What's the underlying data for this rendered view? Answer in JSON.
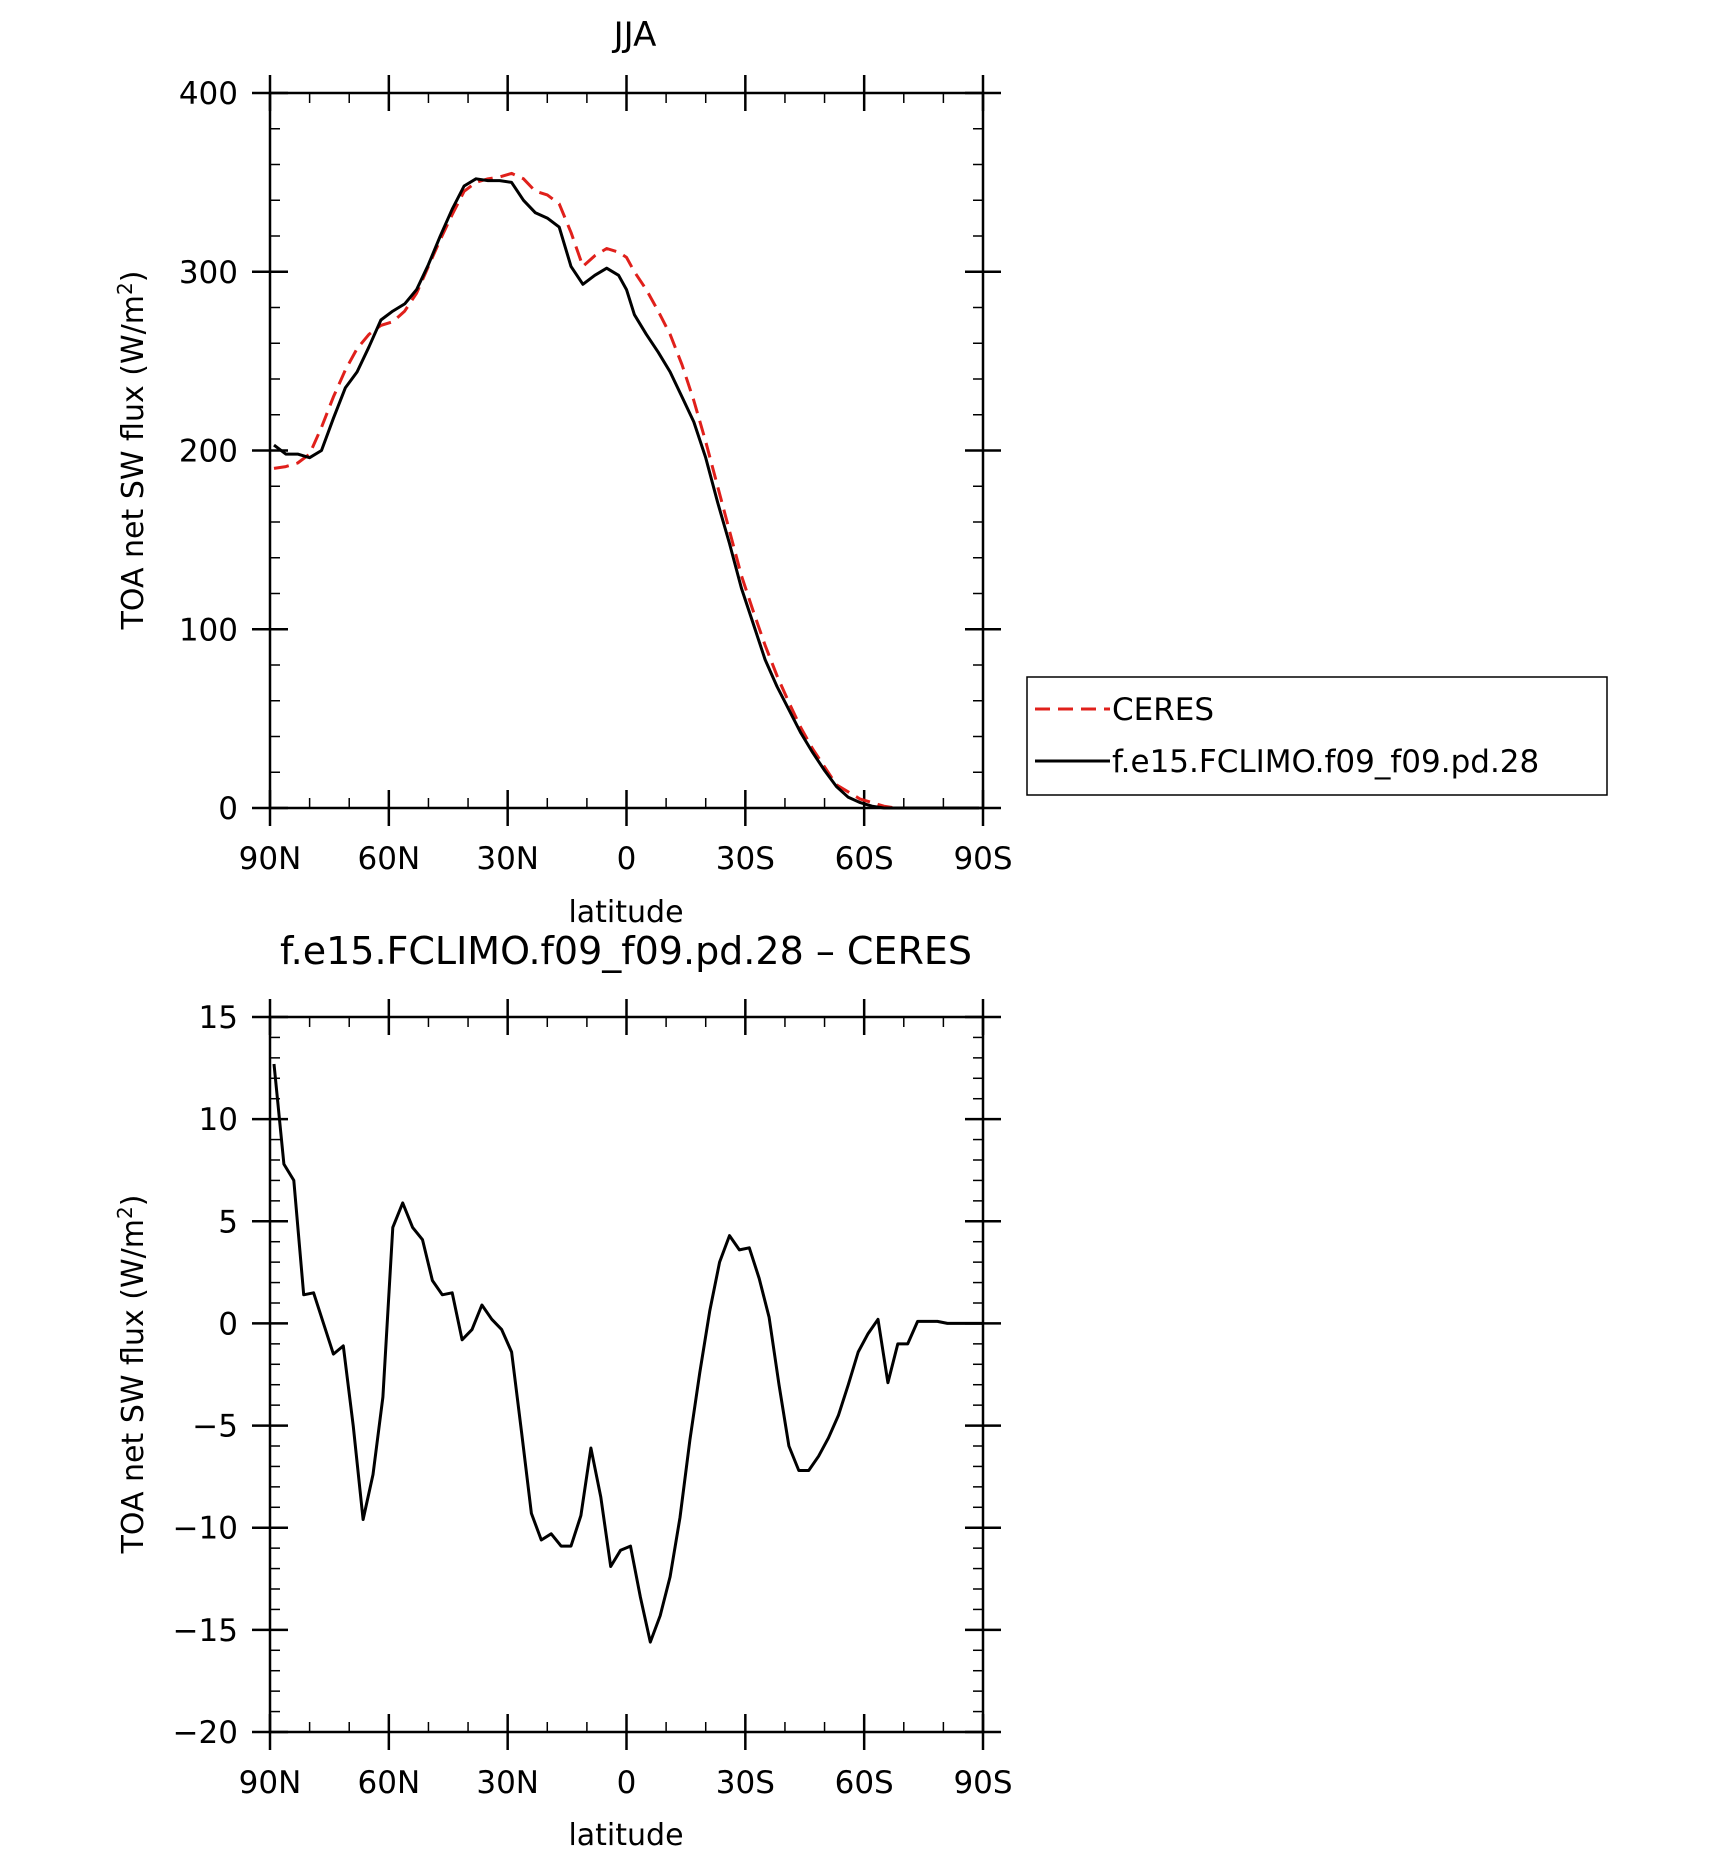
{
  "chart_data": [
    {
      "type": "line",
      "title": "JJA",
      "xlabel": "latitude",
      "ylabel": "TOA net SW flux (W/m",
      "ylabel_sup": "2",
      "ylabel_close": ")",
      "xlim": [
        90,
        -90
      ],
      "ylim": [
        0,
        400
      ],
      "xtick_values": [
        90,
        60,
        30,
        0,
        -30,
        -60,
        -90
      ],
      "xtick_labels": [
        "90N",
        "60N",
        "30N",
        "0",
        "30S",
        "60S",
        "90S"
      ],
      "ytick_values": [
        0,
        100,
        200,
        300,
        400
      ],
      "ytick_labels": [
        "0",
        "100",
        "200",
        "300",
        "400"
      ],
      "legend": {
        "placement": "right",
        "entries": [
          "CERES",
          "f.e15.FCLIMO.f09_f09.pd.28"
        ]
      },
      "series": [
        {
          "name": "CERES",
          "color": "#e0201b",
          "dash": true,
          "x": [
            89,
            86,
            83,
            80,
            77,
            74,
            71,
            68,
            65,
            62,
            59,
            56,
            53,
            50,
            47,
            44,
            41,
            38,
            35,
            32,
            29,
            26,
            23,
            20,
            17,
            14,
            11,
            8,
            5,
            2,
            0,
            -2,
            -5,
            -8,
            -11,
            -14,
            -17,
            -20,
            -23,
            -26,
            -29,
            -32,
            -35,
            -38,
            -41,
            -44,
            -47,
            -50,
            -53,
            -56,
            -59,
            -62,
            -65,
            -68,
            -71,
            -74,
            -77,
            -80,
            -83,
            -86,
            -89
          ],
          "y": [
            190,
            191,
            193,
            198,
            213,
            230,
            245,
            257,
            265,
            270,
            272,
            278,
            288,
            303,
            318,
            332,
            345,
            350,
            352,
            353,
            355,
            352,
            345,
            343,
            338,
            322,
            303,
            309,
            313,
            311,
            308,
            300,
            290,
            278,
            265,
            248,
            228,
            205,
            180,
            155,
            130,
            110,
            91,
            74,
            59,
            45,
            33,
            23,
            13,
            9,
            5,
            3,
            1,
            0,
            0,
            0,
            0,
            0,
            0,
            0,
            0
          ]
        },
        {
          "name": "f.e15.FCLIMO.f09_f09.pd.28",
          "color": "#000000",
          "dash": false,
          "x": [
            89,
            86,
            83,
            80,
            77,
            74,
            71,
            68,
            65,
            62,
            59,
            56,
            53,
            50,
            47,
            44,
            41,
            38,
            35,
            32,
            29,
            26,
            23,
            20,
            17,
            14,
            11,
            8,
            5,
            2,
            0,
            -2,
            -5,
            -8,
            -11,
            -14,
            -17,
            -20,
            -23,
            -26,
            -29,
            -32,
            -35,
            -38,
            -41,
            -44,
            -47,
            -50,
            -53,
            -56,
            -59,
            -62,
            -65,
            -68,
            -71,
            -74,
            -77,
            -80,
            -83,
            -86,
            -89
          ],
          "y": [
            203,
            198,
            198,
            196,
            200,
            218,
            235,
            244,
            258,
            273,
            278,
            282,
            290,
            304,
            320,
            335,
            348,
            352,
            351,
            351,
            350,
            340,
            333,
            330,
            325,
            303,
            293,
            298,
            302,
            298,
            290,
            276,
            265,
            255,
            244,
            230,
            216,
            196,
            171,
            148,
            123,
            103,
            83,
            68,
            55,
            42,
            31,
            21,
            12,
            6,
            3,
            1,
            0,
            0,
            0,
            0,
            0,
            0,
            0,
            0,
            0
          ]
        }
      ]
    },
    {
      "type": "line",
      "title": "f.e15.FCLIMO.f09_f09.pd.28 – CERES",
      "xlabel": "latitude",
      "ylabel": "TOA net SW flux (W/m",
      "ylabel_sup": "2",
      "ylabel_close": ")",
      "xlim": [
        90,
        -90
      ],
      "ylim": [
        -20,
        15
      ],
      "xtick_values": [
        90,
        60,
        30,
        0,
        -30,
        -60,
        -90
      ],
      "xtick_labels": [
        "90N",
        "60N",
        "30N",
        "0",
        "30S",
        "60S",
        "90S"
      ],
      "ytick_values": [
        -20,
        -15,
        -10,
        -5,
        0,
        5,
        10,
        15
      ],
      "ytick_labels": [
        "−20",
        "−15",
        "−10",
        "−5",
        "0",
        "5",
        "10",
        "15"
      ],
      "series": [
        {
          "color": "#000000",
          "x": [
            89,
            86.5,
            84,
            81.5,
            79,
            76.5,
            74,
            71.5,
            69,
            66.5,
            64,
            61.5,
            59,
            56.5,
            54,
            51.5,
            49,
            46.5,
            44,
            41.5,
            39,
            36.5,
            34,
            31.5,
            29,
            26.5,
            24,
            21.5,
            19,
            16.5,
            14,
            11.5,
            9,
            6.5,
            4,
            1.5,
            -1,
            -3.5,
            -6,
            -8.5,
            -11,
            -13.5,
            -16,
            -18.5,
            -21,
            -23.5,
            -26,
            -28.5,
            -31,
            -33.5,
            -36,
            -38.5,
            -41,
            -43.5,
            -46,
            -48.5,
            -51,
            -53.5,
            -56,
            -58.5,
            -61,
            -63.5,
            -66,
            -68.5,
            -71,
            -73.5,
            -76,
            -78.5,
            -81,
            -83.5,
            -86,
            -88.5,
            -90
          ],
          "y": [
            12.7,
            7.8,
            7.0,
            1.4,
            1.5,
            0.0,
            -1.5,
            -1.1,
            -5.0,
            -9.6,
            -7.4,
            -3.6,
            4.7,
            5.9,
            4.7,
            4.1,
            2.1,
            1.4,
            1.5,
            -0.8,
            -0.3,
            0.9,
            0.2,
            -0.3,
            -1.4,
            -5.3,
            -9.3,
            -10.6,
            -10.3,
            -10.9,
            -10.9,
            -9.4,
            -6.1,
            -8.5,
            -11.9,
            -11.1,
            -10.9,
            -13.4,
            -15.6,
            -14.3,
            -12.4,
            -9.5,
            -5.7,
            -2.4,
            0.6,
            3.0,
            4.3,
            3.6,
            3.7,
            2.2,
            0.3,
            -3.0,
            -6.0,
            -7.2,
            -7.2,
            -6.5,
            -5.6,
            -4.5,
            -3.0,
            -1.4,
            -0.5,
            0.2,
            -2.9,
            -1.0,
            -1.0,
            0.1,
            0.1,
            0.1,
            0.0,
            0.0,
            0.0,
            0.0,
            0.0
          ]
        }
      ]
    }
  ]
}
